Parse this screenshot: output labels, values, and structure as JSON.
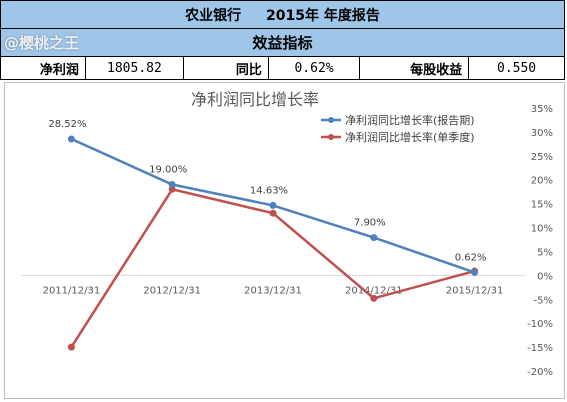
{
  "header": {
    "company": "农业银行",
    "year_report": "2015年 年度报告",
    "section": "效益指标",
    "watermark": "@樱桃之王"
  },
  "metrics": [
    {
      "label": "净利润",
      "value": "1805.82"
    },
    {
      "label": "同比",
      "value": "0.62%"
    },
    {
      "label": "每股收益",
      "value": "0.550"
    }
  ],
  "colors": {
    "header_bg": "#9fc5e8",
    "series_1": "#4f81bd",
    "series_2": "#c0504d"
  },
  "chart_data": {
    "type": "line",
    "title": "净利润同比增长率",
    "categories": [
      "2011/12/31",
      "2012/12/31",
      "2013/12/31",
      "2014/12/31",
      "2015/12/31"
    ],
    "series": [
      {
        "name": "净利润同比增长率(报告期)",
        "values": [
          28.52,
          19.0,
          14.63,
          7.9,
          0.62
        ],
        "labels": [
          "28.52%",
          "19.00%",
          "14.63%",
          "7.90%",
          "0.62%"
        ],
        "color": "#4f81bd"
      },
      {
        "name": "净利润同比增长率(单季度)",
        "values": [
          -15.0,
          18.0,
          13.0,
          -4.8,
          0.9
        ],
        "color": "#c0504d"
      }
    ],
    "ylim": [
      -20,
      35
    ],
    "yticks": [
      35,
      30,
      25,
      20,
      15,
      10,
      5,
      0,
      -5,
      -10,
      -15,
      -20
    ],
    "ytick_labels": [
      "35%",
      "30%",
      "25%",
      "20%",
      "15%",
      "10%",
      "5%",
      "0%",
      "-5%",
      "-10%",
      "-15%",
      "-20%"
    ],
    "legend_position": "top-right",
    "grid": false
  }
}
